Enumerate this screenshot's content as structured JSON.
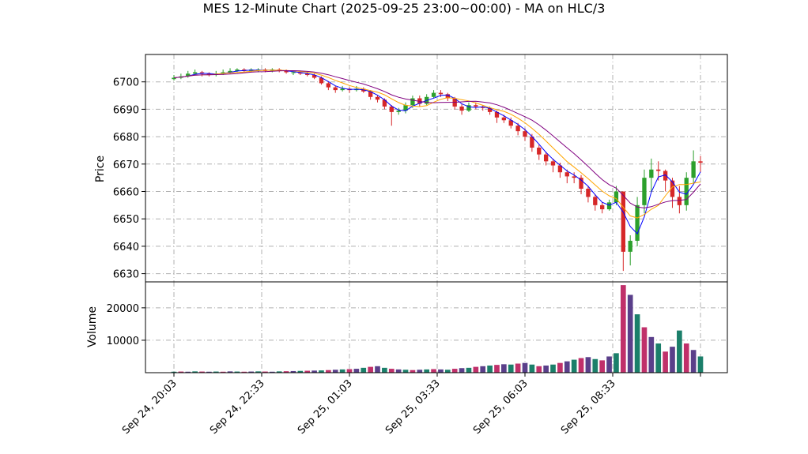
{
  "chart_data": {
    "type": "candlestick",
    "title": "MES 12-Minute Chart (2025-09-25 23:00~00:00) - MA on HLC/3",
    "price_panel": {
      "ylabel": "Price",
      "ylim": [
        6627,
        6710
      ],
      "yticks": [
        6630,
        6640,
        6650,
        6660,
        6670,
        6680,
        6690,
        6700
      ],
      "grid": true
    },
    "volume_panel": {
      "ylabel": "Volume",
      "ylim": [
        0,
        28000
      ],
      "yticks": [
        10000,
        20000
      ],
      "grid": true
    },
    "x_ticks": [
      {
        "label": "Sep 24, 20:03",
        "index": 0
      },
      {
        "label": "Sep 24, 22:33",
        "index": 12.5
      },
      {
        "label": "Sep 25, 01:03",
        "index": 25
      },
      {
        "label": "Sep 25, 03:33",
        "index": 37.5
      },
      {
        "label": "Sep 25, 06:03",
        "index": 50
      },
      {
        "label": "Sep 25, 08:33",
        "index": 62.5
      },
      {
        "label": "",
        "index": 75
      }
    ],
    "bar_count": 76,
    "close": [
      6701.5,
      6702,
      6703,
      6703.5,
      6703,
      6702.5,
      6703,
      6703.5,
      6704,
      6704.5,
      6704,
      6704.5,
      6704.5,
      6704,
      6704.5,
      6704,
      6703.5,
      6703.5,
      6703,
      6702.5,
      6701.5,
      6699.5,
      6698,
      6697,
      6697.5,
      6697,
      6697.5,
      6696.5,
      6694.5,
      6693.5,
      6691,
      6689,
      6689.5,
      6691.5,
      6694,
      6692,
      6694.5,
      6696,
      6695.5,
      6694,
      6691,
      6689.5,
      6691.5,
      6691,
      6690.5,
      6689,
      6687,
      6686,
      6684,
      6682,
      6680,
      6676,
      6673.5,
      6671,
      6669.5,
      6667,
      6665.5,
      6665,
      6661,
      6658,
      6655,
      6653.5,
      6656,
      6660,
      6638,
      6642,
      6655,
      6665,
      6668,
      6667.5,
      6664,
      6658,
      6655,
      6665,
      6671,
      6670.5
    ],
    "open": [
      6701,
      6701.5,
      6702,
      6703,
      6703.5,
      6703,
      6702.5,
      6703,
      6703.5,
      6704,
      6704.5,
      6704,
      6704.5,
      6704.5,
      6704,
      6704.5,
      6704,
      6703.5,
      6703.5,
      6703,
      6702.5,
      6701.5,
      6699.5,
      6698,
      6697,
      6697.5,
      6697,
      6697.5,
      6696.5,
      6694.5,
      6693.5,
      6691,
      6689,
      6689.5,
      6691.5,
      6694,
      6692,
      6694.5,
      6696,
      6695.5,
      6694,
      6691,
      6689.5,
      6691.5,
      6691,
      6690.5,
      6689,
      6687,
      6686,
      6684,
      6682,
      6680,
      6676,
      6673.5,
      6671,
      6669.5,
      6667,
      6665.5,
      6665,
      6661,
      6658,
      6655,
      6653.5,
      6656,
      6660,
      6638,
      6642,
      6655,
      6665,
      6668,
      6667.5,
      6664,
      6658,
      6655,
      6665,
      6671
    ],
    "high": [
      6702.5,
      6703,
      6704,
      6704.5,
      6704,
      6703.5,
      6704,
      6704.5,
      6705,
      6705,
      6705,
      6705,
      6705,
      6705,
      6705,
      6705,
      6704.5,
      6704,
      6704,
      6703.5,
      6703,
      6702,
      6700,
      6698.5,
      6698.5,
      6698,
      6698.5,
      6698,
      6697,
      6695,
      6694,
      6691.5,
      6690.5,
      6692.5,
      6695,
      6695,
      6695.5,
      6697,
      6697,
      6696,
      6694.5,
      6692,
      6692.5,
      6692.5,
      6691.5,
      6691,
      6689.5,
      6688,
      6687,
      6685,
      6683,
      6681,
      6677,
      6674.5,
      6672,
      6670.5,
      6668,
      6667,
      6666,
      6662,
      6659,
      6656,
      6657,
      6662,
      6660,
      6644,
      6658,
      6668,
      6672,
      6671,
      6668,
      6665,
      6662,
      6667,
      6675,
      6673
    ],
    "low": [
      6700.5,
      6701,
      6701.5,
      6702.5,
      6702,
      6702,
      6702,
      6702.5,
      6703,
      6703.5,
      6703.5,
      6703.5,
      6703.5,
      6703.5,
      6703.5,
      6703.5,
      6703,
      6702.5,
      6702.5,
      6702,
      6701,
      6699,
      6697,
      6696,
      6696.5,
      6696,
      6696.5,
      6696,
      6693.5,
      6692.5,
      6690,
      6684,
      6688,
      6688.5,
      6690.5,
      6691,
      6691.5,
      6694,
      6694.5,
      6693,
      6690,
      6688,
      6689,
      6690,
      6689.5,
      6688,
      6685,
      6685,
      6683,
      6680.5,
      6678.5,
      6674.5,
      6671.5,
      6669.5,
      6667,
      6665,
      6663,
      6663,
      6659,
      6656,
      6653,
      6652,
      6653,
      6655,
      6631,
      6633,
      6640,
      6652,
      6660,
      6664,
      6660,
      6654,
      6652,
      6653,
      6663,
      6667
    ],
    "volume": [
      300,
      350,
      300,
      400,
      350,
      300,
      350,
      300,
      400,
      350,
      300,
      350,
      400,
      350,
      300,
      400,
      450,
      500,
      550,
      600,
      650,
      700,
      800,
      900,
      1000,
      1100,
      1200,
      1500,
      1800,
      2000,
      1500,
      1200,
      1000,
      900,
      800,
      900,
      1000,
      1100,
      1000,
      900,
      1200,
      1400,
      1500,
      1800,
      2000,
      2200,
      2400,
      2600,
      2500,
      2800,
      3000,
      2500,
      2000,
      2200,
      2500,
      3000,
      3500,
      4000,
      4500,
      4800,
      4200,
      3800,
      5000,
      6000,
      27000,
      24000,
      18000,
      14000,
      11000,
      9000,
      6500,
      8000,
      13000,
      9000,
      7000,
      5000
    ],
    "volume_colors": [
      "#1b7f6a",
      "#c0306a",
      "#5a3f8a"
    ],
    "up_color": "#2ca02c",
    "down_color": "#d62728",
    "ma_fast": {
      "color": "#0000ff",
      "period": 3
    },
    "ma_mid": {
      "color": "#ffa500",
      "period": 6
    },
    "ma_slow": {
      "color": "#800080",
      "period": 10
    }
  }
}
